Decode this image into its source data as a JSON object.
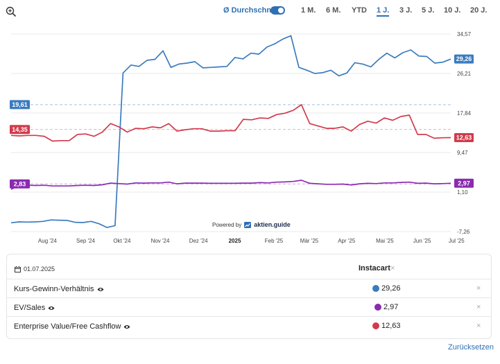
{
  "toolbar": {
    "average_label": "Ø Durchschnitt",
    "average_on": true,
    "ranges": [
      "1 M.",
      "6 M.",
      "YTD",
      "1 J.",
      "3 J.",
      "5 J.",
      "10 J.",
      "20 J."
    ],
    "active_range": "1 J."
  },
  "powered": {
    "prefix": "Powered by",
    "brand": "aktien.guide"
  },
  "chart_data": {
    "type": "line",
    "x_ticks": [
      "Aug '24",
      "Sep '24",
      "Okt '24",
      "Nov '24",
      "Dez '24",
      "2025",
      "Feb '25",
      "Mär '25",
      "Apr '25",
      "Mai '25",
      "Jun '25",
      "Jul '25"
    ],
    "x_ticks_bold": [
      "2025"
    ],
    "y_ticks": [
      "34,57",
      "26,21",
      "17,84",
      "9,47",
      "1,10",
      "-7,26"
    ],
    "ylim": [
      -7.26,
      34.57
    ],
    "x_range": [
      0,
      46
    ],
    "x_tick_positions": [
      3.8,
      7.8,
      11.6,
      15.6,
      19.6,
      23.4,
      27.5,
      31.2,
      35.1,
      39.1,
      43,
      46.6
    ],
    "grid": true,
    "series": [
      {
        "name": "Kurs-Gewinn-Verhältnis",
        "color": "#3a7bbf",
        "average": 19.61,
        "average_label": "19,61",
        "last_label": "29,26",
        "values": [
          -5.4,
          -5.2,
          -5.25,
          -5.2,
          -5.1,
          -4.8,
          -4.85,
          -4.9,
          -5.3,
          -5.35,
          -5.1,
          -5.6,
          -6.4,
          -6.0,
          26.3,
          28.0,
          27.7,
          29.0,
          29.2,
          31.0,
          27.5,
          28.2,
          28.4,
          28.7,
          27.4,
          27.5,
          27.6,
          27.7,
          29.6,
          29.3,
          30.5,
          30.3,
          31.8,
          32.5,
          33.5,
          34.2,
          27.5,
          26.9,
          26.2,
          26.4,
          26.9,
          25.7,
          26.3,
          28.5,
          28.2,
          27.6,
          29.2,
          30.5,
          29.5,
          30.6,
          31.2,
          29.9,
          29.8,
          28.4,
          28.6,
          29.26
        ]
      },
      {
        "name": "Enterprise Value/Free Cashflow",
        "color": "#d23a4b",
        "average": 14.35,
        "average_label": "14,35",
        "last_label": "12,63",
        "values": [
          13.1,
          13.0,
          13.1,
          13.1,
          12.9,
          11.9,
          12.0,
          12.0,
          13.3,
          13.4,
          12.9,
          13.8,
          15.6,
          14.9,
          13.8,
          14.6,
          14.5,
          14.9,
          14.7,
          15.6,
          14.0,
          14.3,
          14.5,
          14.5,
          14.0,
          14.0,
          14.1,
          14.1,
          16.5,
          16.4,
          16.8,
          16.7,
          17.5,
          17.8,
          18.4,
          19.6,
          15.6,
          15.1,
          14.6,
          14.6,
          14.9,
          14.0,
          15.4,
          16.1,
          15.7,
          16.8,
          16.3,
          17.1,
          17.4,
          13.3,
          13.3,
          12.5,
          12.6,
          12.63
        ]
      },
      {
        "name": "EV/Sales",
        "color": "#8a2bb0",
        "average": 2.83,
        "average_label": "2,83",
        "last_label": "2,97",
        "values": [
          1.7,
          2.5,
          2.55,
          2.5,
          2.55,
          2.4,
          2.4,
          2.4,
          2.5,
          2.55,
          2.5,
          2.65,
          3.0,
          2.9,
          2.8,
          3.05,
          3.0,
          3.05,
          3.05,
          3.2,
          2.85,
          3.0,
          3.0,
          3.0,
          2.95,
          2.95,
          2.95,
          2.95,
          3.0,
          3.0,
          3.1,
          3.05,
          3.2,
          3.25,
          3.35,
          3.6,
          2.95,
          2.85,
          2.75,
          2.75,
          2.8,
          2.6,
          2.85,
          2.95,
          2.9,
          3.05,
          3.05,
          3.15,
          3.2,
          2.95,
          3.0,
          2.85,
          2.9,
          2.97
        ]
      }
    ]
  },
  "panel": {
    "date": "01.07.2025",
    "company": "Instacart",
    "close_symbol": "×",
    "rows": [
      {
        "label": "Kurs-Gewinn-Verhältnis",
        "value": "29,26",
        "color": "#3a7bbf"
      },
      {
        "label": "EV/Sales",
        "value": "2,97",
        "color": "#8a2bb0"
      },
      {
        "label": "Enterprise Value/Free Cashflow",
        "value": "12,63",
        "color": "#d23a4b"
      }
    ]
  },
  "reset_label": "Zurücksetzen"
}
